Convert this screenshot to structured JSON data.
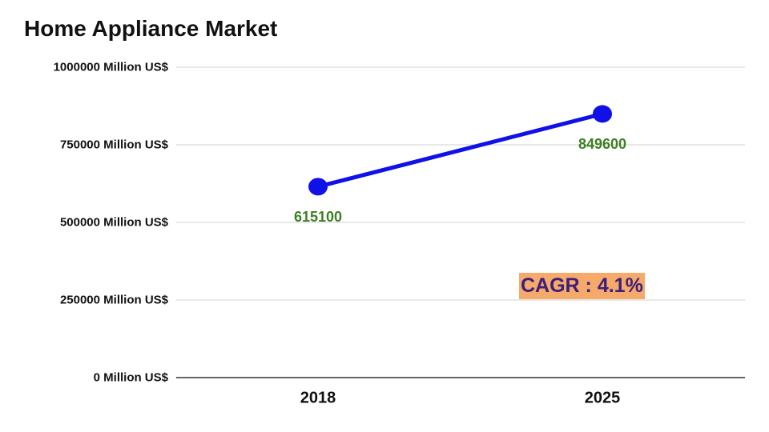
{
  "chart_data": {
    "type": "line",
    "title": "Home Appliance Market",
    "categories": [
      "2018",
      "2025"
    ],
    "series": [
      {
        "color": "#1010e8",
        "values": [
          615100,
          849600
        ]
      }
    ],
    "value_label_color": "#3d7f22",
    "ylim": [
      0,
      1000000
    ],
    "yticks": [
      {
        "value": 0,
        "label": "0 Million US$"
      },
      {
        "value": 250000,
        "label": "250000 Million US$"
      },
      {
        "value": 500000,
        "label": "500000 Million US$"
      },
      {
        "value": 750000,
        "label": "750000 Million US$"
      },
      {
        "value": 1000000,
        "label": "1000000 Million US$"
      }
    ],
    "grid": true,
    "annotations": [
      {
        "text": "CAGR : 4.1%",
        "background": "#f5a96a",
        "color": "#3b1f7a"
      }
    ]
  }
}
